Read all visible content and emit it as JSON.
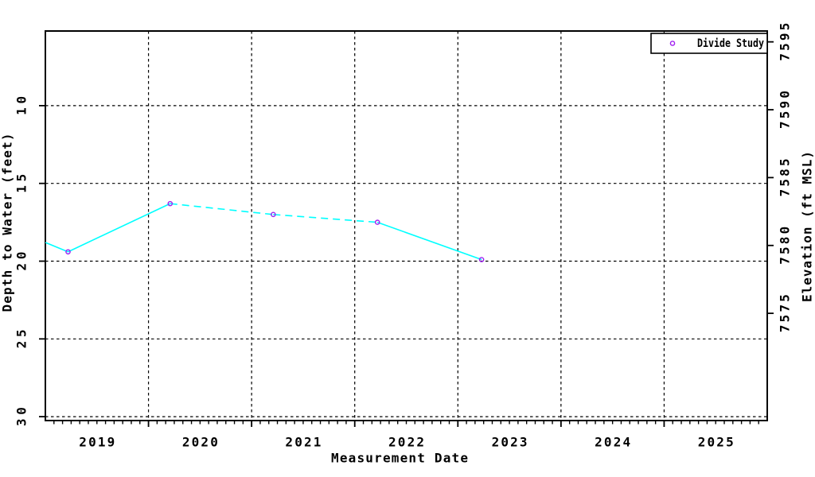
{
  "figure": {
    "background": "#ffffff",
    "description": "Groundwater well hydrograph line plot"
  },
  "chart_data": {
    "type": "line",
    "title": "",
    "xlabel": "Measurement Date",
    "ylabel_left": "Depth to Water (feet)",
    "ylabel_right": "Elevation (ft MSL)",
    "grid": true,
    "grid_style": "dashed",
    "xlim": [
      2019.0,
      2026.0
    ],
    "x_tick_labels": [
      "2019",
      "2020",
      "2021",
      "2022",
      "2023",
      "2024",
      "2025"
    ],
    "x_gridline_years": [
      2020,
      2021,
      2022,
      2023,
      2024,
      2025
    ],
    "x_minor_ticks_per_year": 12,
    "ylim_left_top": 5.2,
    "ylim_left_bottom": 30.25,
    "y_left_ticks": [
      10,
      15,
      20,
      25,
      30
    ],
    "y_left_axis_reversed_depth": true,
    "ylim_right_top": 7595.8,
    "ylim_right_bottom": 7567.1,
    "y_right_ticks": [
      7595,
      7590,
      7585,
      7580,
      7575
    ],
    "legend": {
      "position": "top-right",
      "label": "Divide Study",
      "border": true
    },
    "series": [
      {
        "name": "Divide Study",
        "line_color": "#00ffff",
        "marker": "open-circle",
        "marker_color": "#a020f0",
        "points": [
          {
            "x_year": 2019.0,
            "date_approx": "2019-01",
            "depth_ft": 18.8,
            "marker": false,
            "note": "line enters clipped at left axis edge"
          },
          {
            "x_year": 2019.22,
            "date_approx": "2019-03",
            "depth_ft": 19.4,
            "marker": true
          },
          {
            "x_year": 2020.21,
            "date_approx": "2020-03",
            "depth_ft": 16.3,
            "marker": true
          },
          {
            "x_year": 2021.21,
            "date_approx": "2021-03",
            "depth_ft": 17.0,
            "marker": true
          },
          {
            "x_year": 2022.22,
            "date_approx": "2022-03",
            "depth_ft": 17.5,
            "marker": true
          },
          {
            "x_year": 2023.23,
            "date_approx": "2023-03",
            "depth_ft": 19.9,
            "marker": true
          }
        ],
        "segment_styles": [
          "solid",
          "solid",
          "dashed",
          "dashed",
          "solid"
        ]
      }
    ]
  },
  "colors": {
    "axis": "#000000",
    "grid": "#000000",
    "text": "#000000",
    "series_line": "#00ffff",
    "series_marker": "#a020f0",
    "background": "#ffffff"
  }
}
